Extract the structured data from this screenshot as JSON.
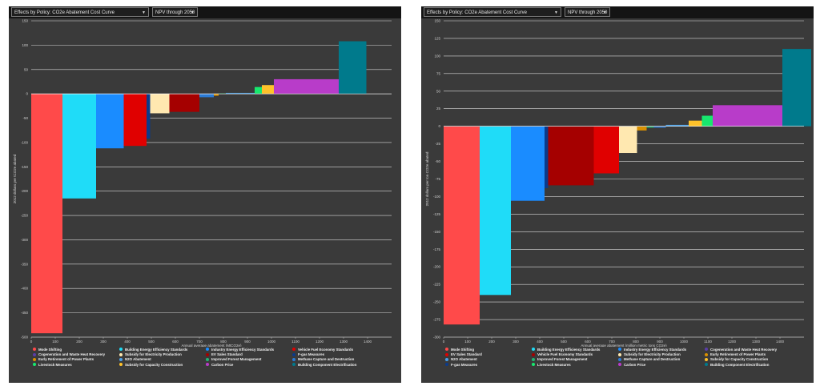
{
  "panels": [
    {
      "policy_select": "Effects by Policy: CO2e Abatement Cost Curve",
      "metric_select": "NPV through 2050"
    },
    {
      "policy_select": "Effects by Policy: CO2e Abatement Cost Curve",
      "metric_select": "NPV through 2050"
    }
  ],
  "chart_data": [
    {
      "type": "bar",
      "subtype": "abatement-cost-curve",
      "title": "",
      "xlabel": "Annual average abatement (MtCO2e)",
      "ylabel": "2012 dollars per tCO2e abated",
      "xlim": [
        0,
        1500
      ],
      "ylim": [
        -500,
        150
      ],
      "xticks": [
        0,
        100,
        200,
        300,
        400,
        500,
        600,
        700,
        800,
        900,
        1000,
        1100,
        1200,
        1300,
        1400
      ],
      "yticks": [
        150,
        100,
        50,
        0,
        -50,
        -100,
        -150,
        -200,
        -250,
        -300,
        -350,
        -400,
        -450,
        -500
      ],
      "bars": [
        {
          "name": "Mode Shifting",
          "width": 130,
          "value": -492,
          "color": "#ff4a4a"
        },
        {
          "name": "Building Energy Efficiency Standards",
          "width": 140,
          "value": -215,
          "color": "#1fdcf8"
        },
        {
          "name": "Industry Energy Efficiency Standards",
          "width": 115,
          "value": -112,
          "color": "#1a8cff"
        },
        {
          "name": "Vehicle Fuel Economy Standards",
          "width": 95,
          "value": -107,
          "color": "#e00000"
        },
        {
          "name": "F-gas Measures",
          "width": 15,
          "value": -92,
          "color": "#0b3a8a"
        },
        {
          "name": "Subsidy for Electricity Production",
          "width": 80,
          "value": -40,
          "color": "#ffe8b0"
        },
        {
          "name": "EV Sales Standard",
          "width": 125,
          "value": -37,
          "color": "#a50000"
        },
        {
          "name": "Methane Capture and Destruction",
          "width": 60,
          "value": -7,
          "color": "#2b7bd6"
        },
        {
          "name": "Early Retirement of Power Plants",
          "width": 20,
          "value": -4,
          "color": "#d99000"
        },
        {
          "name": "Improved Forest Management",
          "width": 30,
          "value": 1,
          "color": "#22b573"
        },
        {
          "name": "N2O Abatement",
          "width": 120,
          "value": 2,
          "color": "#4aa0e8"
        },
        {
          "name": "Livestock Measures",
          "width": 30,
          "value": 14,
          "color": "#17e86e"
        },
        {
          "name": "Subsidy for Capacity Construction",
          "width": 50,
          "value": 18,
          "color": "#ffc22a"
        },
        {
          "name": "Carbon Price",
          "width": 270,
          "value": 30,
          "color": "#b83cc9"
        },
        {
          "name": "Building Component Electrification",
          "width": 115,
          "value": 108,
          "color": "#007a8c"
        }
      ],
      "legend": [
        {
          "label": "Mode Shifting",
          "color": "#ff4a4a"
        },
        {
          "label": "Building Energy Efficiency Standards",
          "color": "#1fdcf8"
        },
        {
          "label": "Industry Energy Efficiency Standards",
          "color": "#1a8cff"
        },
        {
          "label": "Vehicle Fuel Economy Standards",
          "color": "#e00000"
        },
        {
          "label": "Cogeneration and Waste Heat Recovery",
          "color": "#5a3da8"
        },
        {
          "label": "Subsidy for Electricity Production",
          "color": "#ffe8b0"
        },
        {
          "label": "EV Sales Standard",
          "color": "#a50000"
        },
        {
          "label": "F-gas Measures",
          "color": "#0b3a8a"
        },
        {
          "label": "Early Retirement of Power Plants",
          "color": "#d99000"
        },
        {
          "label": "N2O Abatement",
          "color": "#4aa0e8"
        },
        {
          "label": "Improved Forest Management",
          "color": "#22b573"
        },
        {
          "label": "Methane Capture and Destruction",
          "color": "#2b7bd6"
        },
        {
          "label": "Livestock Measures",
          "color": "#17e86e"
        },
        {
          "label": "Subsidy for Capacity Construction",
          "color": "#ffc22a"
        },
        {
          "label": "Carbon Price",
          "color": "#b83cc9"
        },
        {
          "label": "Building Component Electrification",
          "color": "#007a8c"
        }
      ]
    },
    {
      "type": "bar",
      "subtype": "abatement-cost-curve",
      "title": "",
      "xlabel": "Annual average abatement (million metric tons CO2e)",
      "ylabel": "2012 dollars per ton CO2e abated",
      "xlim": [
        0,
        1500
      ],
      "ylim": [
        -300,
        150
      ],
      "xticks": [
        0,
        100,
        200,
        300,
        400,
        500,
        600,
        700,
        800,
        900,
        1000,
        1100,
        1200,
        1300,
        1400
      ],
      "yticks": [
        150,
        125,
        100,
        75,
        50,
        25,
        0,
        -25,
        -50,
        -75,
        -100,
        -125,
        -150,
        -175,
        -200,
        -225,
        -250,
        -275,
        -300
      ],
      "bars": [
        {
          "name": "Mode Shifting",
          "width": 150,
          "value": -282,
          "color": "#ff4a4a"
        },
        {
          "name": "Building Energy Efficiency Standards",
          "width": 130,
          "value": -240,
          "color": "#1fdcf8"
        },
        {
          "name": "Industry Energy Efficiency Standards",
          "width": 140,
          "value": -106,
          "color": "#1a8cff"
        },
        {
          "name": "F-gas Measures",
          "width": 15,
          "value": -88,
          "color": "#0b3a8a"
        },
        {
          "name": "Vehicle Fuel Economy Standards",
          "width": 190,
          "value": -84,
          "color": "#a50000"
        },
        {
          "name": "EV Sales Standard",
          "width": 105,
          "value": -67,
          "color": "#e00000"
        },
        {
          "name": "Subsidy for Electricity Production",
          "width": 75,
          "value": -38,
          "color": "#ffe8b0"
        },
        {
          "name": "Early Retirement of Power Plants",
          "width": 40,
          "value": -6,
          "color": "#d99000"
        },
        {
          "name": "Improved Forest Management",
          "width": 30,
          "value": -2,
          "color": "#22b573"
        },
        {
          "name": "Methane Capture and Destruction",
          "width": 50,
          "value": -2,
          "color": "#2b7bd6"
        },
        {
          "name": "N2O Abatement",
          "width": 95,
          "value": 2,
          "color": "#4aa0e8"
        },
        {
          "name": "Subsidy for Capacity Construction",
          "width": 55,
          "value": 8,
          "color": "#ffc22a"
        },
        {
          "name": "Livestock Measures",
          "width": 45,
          "value": 15,
          "color": "#17e86e"
        },
        {
          "name": "Carbon Price",
          "width": 290,
          "value": 30,
          "color": "#b83cc9"
        },
        {
          "name": "Building Component Electrification",
          "width": 120,
          "value": 110,
          "color": "#007a8c"
        }
      ],
      "legend": [
        {
          "label": "Mode Shifting",
          "color": "#ff4a4a"
        },
        {
          "label": "Building Energy Efficiency Standards",
          "color": "#1fdcf8"
        },
        {
          "label": "Industry Energy Efficiency Standards",
          "color": "#1a8cff"
        },
        {
          "label": "Cogeneration and Waste Heat Recovery",
          "color": "#5a3da8"
        },
        {
          "label": "EV Sales Standard",
          "color": "#e00000"
        },
        {
          "label": "Vehicle Fuel Economy Standards",
          "color": "#a50000"
        },
        {
          "label": "Subsidy for Electricity Production",
          "color": "#ffe8b0"
        },
        {
          "label": "Early Retirement of Power Plants",
          "color": "#d99000"
        },
        {
          "label": "N2O Abatement",
          "color": "#4aa0e8"
        },
        {
          "label": "Improved Forest Management",
          "color": "#22b573"
        },
        {
          "label": "Methane Capture and Destruction",
          "color": "#2b7bd6"
        },
        {
          "label": "Subsidy for Capacity Construction",
          "color": "#ffc22a"
        },
        {
          "label": "F-gas Measures",
          "color": "#0b3a8a"
        },
        {
          "label": "Livestock Measures",
          "color": "#17e86e"
        },
        {
          "label": "Carbon Price",
          "color": "#b83cc9"
        },
        {
          "label": "Building Component Electrification",
          "color": "#007a8c"
        }
      ]
    }
  ]
}
